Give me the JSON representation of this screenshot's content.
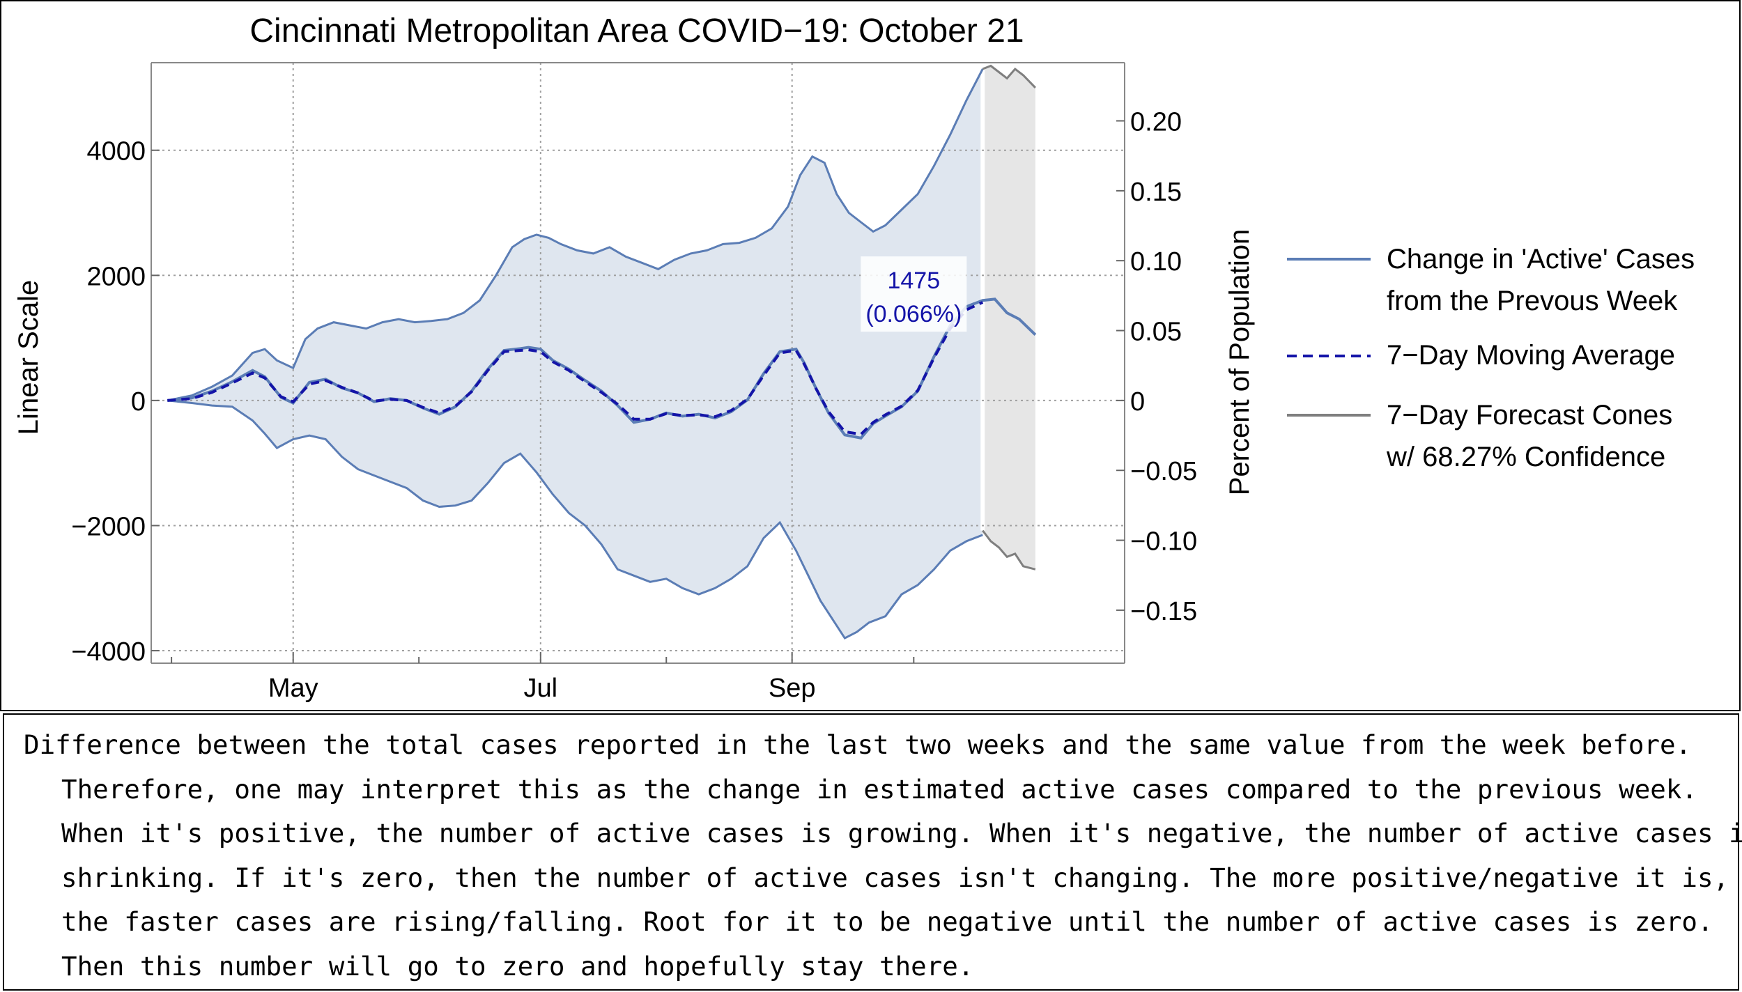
{
  "chart_data": {
    "type": "line",
    "title": "Cincinnati Metropolitan Area COVID−19: October 21",
    "ylabel": "Linear Scale",
    "ylabel_right": "Percent of Population",
    "xlabel": "",
    "ylim": [
      -4200,
      5400
    ],
    "x_range_days": [
      -35,
      205
    ],
    "x_ticks": [
      {
        "label": "May",
        "day": 0
      },
      {
        "label": "Jul",
        "day": 61
      },
      {
        "label": "Sep",
        "day": 123
      }
    ],
    "x_minor_ticks_days": [
      -30,
      31,
      92,
      153
    ],
    "y_ticks": [
      {
        "value": 4000,
        "label": "4000"
      },
      {
        "value": 2000,
        "label": "2000"
      },
      {
        "value": 0,
        "label": "0"
      },
      {
        "value": -2000,
        "label": "−2000"
      },
      {
        "value": -4000,
        "label": "−4000"
      }
    ],
    "y_ticks_right": [
      {
        "value": 0.2,
        "label": "0.20"
      },
      {
        "value": 0.15,
        "label": "0.15"
      },
      {
        "value": 0.1,
        "label": "0.10"
      },
      {
        "value": 0.05,
        "label": "0.05"
      },
      {
        "value": 0,
        "label": "0"
      },
      {
        "value": -0.05,
        "label": "−0.05"
      },
      {
        "value": -0.1,
        "label": "−0.10"
      },
      {
        "value": -0.15,
        "label": "−0.15"
      }
    ],
    "right_axis_per_percent": 22350,
    "series": [
      {
        "name": "Change in 'Active' Cases from the Prevous Week",
        "color": "#5b7db5",
        "x": [
          -31,
          -25,
          -20,
          -15,
          -10,
          -7,
          -3,
          0,
          4,
          8,
          12,
          16,
          20,
          24,
          28,
          32,
          36,
          40,
          44,
          48,
          52,
          56,
          58,
          61,
          64,
          68,
          72,
          76,
          80,
          84,
          88,
          92,
          96,
          100,
          104,
          108,
          112,
          116,
          120,
          124,
          126,
          129,
          132,
          136,
          140,
          143,
          146,
          150,
          154,
          158,
          162,
          166,
          170,
          173,
          176,
          179,
          183
        ],
        "y": [
          0,
          40,
          150,
          300,
          480,
          380,
          50,
          -40,
          290,
          340,
          200,
          120,
          -20,
          30,
          0,
          -120,
          -220,
          -100,
          150,
          500,
          800,
          830,
          850,
          820,
          640,
          500,
          320,
          150,
          -80,
          -350,
          -300,
          -200,
          -250,
          -220,
          -280,
          -180,
          10,
          430,
          780,
          820,
          600,
          180,
          -200,
          -550,
          -600,
          -370,
          -250,
          -100,
          150,
          700,
          1200,
          1500,
          1600,
          1620,
          1400,
          1300,
          1050
        ]
      },
      {
        "name": "7−Day Moving Average",
        "color": "#1414a8",
        "x": [
          -31,
          -25,
          -20,
          -15,
          -10,
          -7,
          -3,
          0,
          4,
          8,
          12,
          16,
          20,
          24,
          28,
          32,
          36,
          40,
          44,
          48,
          52,
          56,
          58,
          61,
          64,
          68,
          72,
          76,
          80,
          84,
          88,
          92,
          96,
          100,
          104,
          108,
          112,
          116,
          120,
          124,
          126,
          129,
          132,
          136,
          140,
          143,
          146,
          150,
          154,
          158,
          162,
          166,
          170
        ],
        "y": [
          0,
          30,
          130,
          280,
          440,
          360,
          60,
          -20,
          260,
          320,
          210,
          120,
          -10,
          20,
          0,
          -110,
          -200,
          -90,
          140,
          480,
          780,
          800,
          810,
          780,
          620,
          480,
          300,
          130,
          -60,
          -300,
          -300,
          -210,
          -240,
          -230,
          -260,
          -160,
          20,
          400,
          760,
          800,
          580,
          180,
          -180,
          -500,
          -540,
          -350,
          -230,
          -90,
          160,
          680,
          1150,
          1450,
          1570
        ]
      },
      {
        "name": "7−Day Forecast Cones w/ 68.27% Confidence",
        "color": "#7f7f7f",
        "x_upper": [
          170,
          172,
          174,
          176,
          178,
          180,
          183
        ],
        "y_upper": [
          5300,
          5350,
          5250,
          5150,
          5300,
          5200,
          5000
        ],
        "x_lower": [
          170,
          172,
          174,
          176,
          178,
          180,
          183
        ],
        "y_lower": [
          -2080,
          -2250,
          -2350,
          -2500,
          -2450,
          -2650,
          -2700
        ]
      }
    ],
    "band_upper": {
      "x": [
        -31,
        -25,
        -20,
        -15,
        -10,
        -7,
        -4,
        0,
        3,
        6,
        10,
        14,
        18,
        22,
        26,
        30,
        34,
        38,
        42,
        46,
        50,
        54,
        57,
        60,
        63,
        66,
        70,
        74,
        78,
        82,
        86,
        90,
        94,
        98,
        102,
        106,
        110,
        114,
        118,
        122,
        125,
        128,
        131,
        134,
        137,
        140,
        143,
        146,
        150,
        154,
        158,
        162,
        166,
        170
      ],
      "y": [
        0,
        80,
        220,
        400,
        760,
        820,
        640,
        520,
        980,
        1150,
        1250,
        1200,
        1150,
        1250,
        1300,
        1250,
        1270,
        1300,
        1400,
        1600,
        2000,
        2450,
        2580,
        2650,
        2600,
        2500,
        2400,
        2350,
        2450,
        2300,
        2200,
        2100,
        2250,
        2350,
        2400,
        2500,
        2520,
        2600,
        2750,
        3100,
        3600,
        3900,
        3800,
        3300,
        3000,
        2850,
        2700,
        2800,
        3050,
        3300,
        3750,
        4250,
        4800,
        5300
      ]
    },
    "band_lower": {
      "x": [
        -31,
        -25,
        -20,
        -15,
        -10,
        -7,
        -4,
        0,
        4,
        8,
        12,
        16,
        20,
        24,
        28,
        32,
        36,
        40,
        44,
        48,
        52,
        56,
        60,
        64,
        68,
        72,
        76,
        80,
        84,
        88,
        92,
        96,
        100,
        104,
        108,
        112,
        116,
        120,
        124,
        127,
        130,
        133,
        136,
        139,
        142,
        146,
        150,
        154,
        158,
        162,
        166,
        170
      ],
      "y": [
        0,
        -40,
        -80,
        -100,
        -320,
        -530,
        -760,
        -620,
        -560,
        -620,
        -900,
        -1100,
        -1200,
        -1300,
        -1400,
        -1600,
        -1700,
        -1680,
        -1600,
        -1320,
        -1000,
        -850,
        -1150,
        -1500,
        -1800,
        -2000,
        -2300,
        -2700,
        -2800,
        -2900,
        -2850,
        -3000,
        -3100,
        -3000,
        -2850,
        -2650,
        -2200,
        -1950,
        -2400,
        -2800,
        -3200,
        -3500,
        -3800,
        -3700,
        -3550,
        -3450,
        -3100,
        -2950,
        -2700,
        -2400,
        -2250,
        -2150
      ]
    },
    "annotation": {
      "label": "1475",
      "sublabel": "(0.066%)",
      "color": "#1414a8",
      "day": 153,
      "value": 1100
    },
    "legend_position": "right",
    "colors": {
      "band_fill": "#dfe6ef",
      "band_edge": "#5b7db5",
      "forecast_fill": "#e6e6e6",
      "forecast_edge": "#7f7f7f",
      "moving_average": "#1414a8",
      "grid": "#a0a0a0"
    }
  },
  "legend": {
    "items": [
      {
        "line1": "Change in 'Active' Cases",
        "line2": "from the Prevous Week"
      },
      {
        "line1": "7−Day Moving Average",
        "line2": ""
      },
      {
        "line1": "7−Day Forecast Cones",
        "line2": " w/ 68.27% Confidence"
      }
    ]
  },
  "caption": {
    "text": "Difference between the total cases reported in the last two weeks and the same value from the week before. Therefore, one may interpret this as the change in estimated active cases compared to the previous week. When it's positive, the number of active cases is growing. When it's negative, the number of active cases is shrinking. If it's zero, then the number of active cases isn't changing. The more positive/negative it is, the faster cases are rising/falling. Root for it to be negative until the number of active cases is zero. Then this number will go to zero and hopefully stay there."
  }
}
